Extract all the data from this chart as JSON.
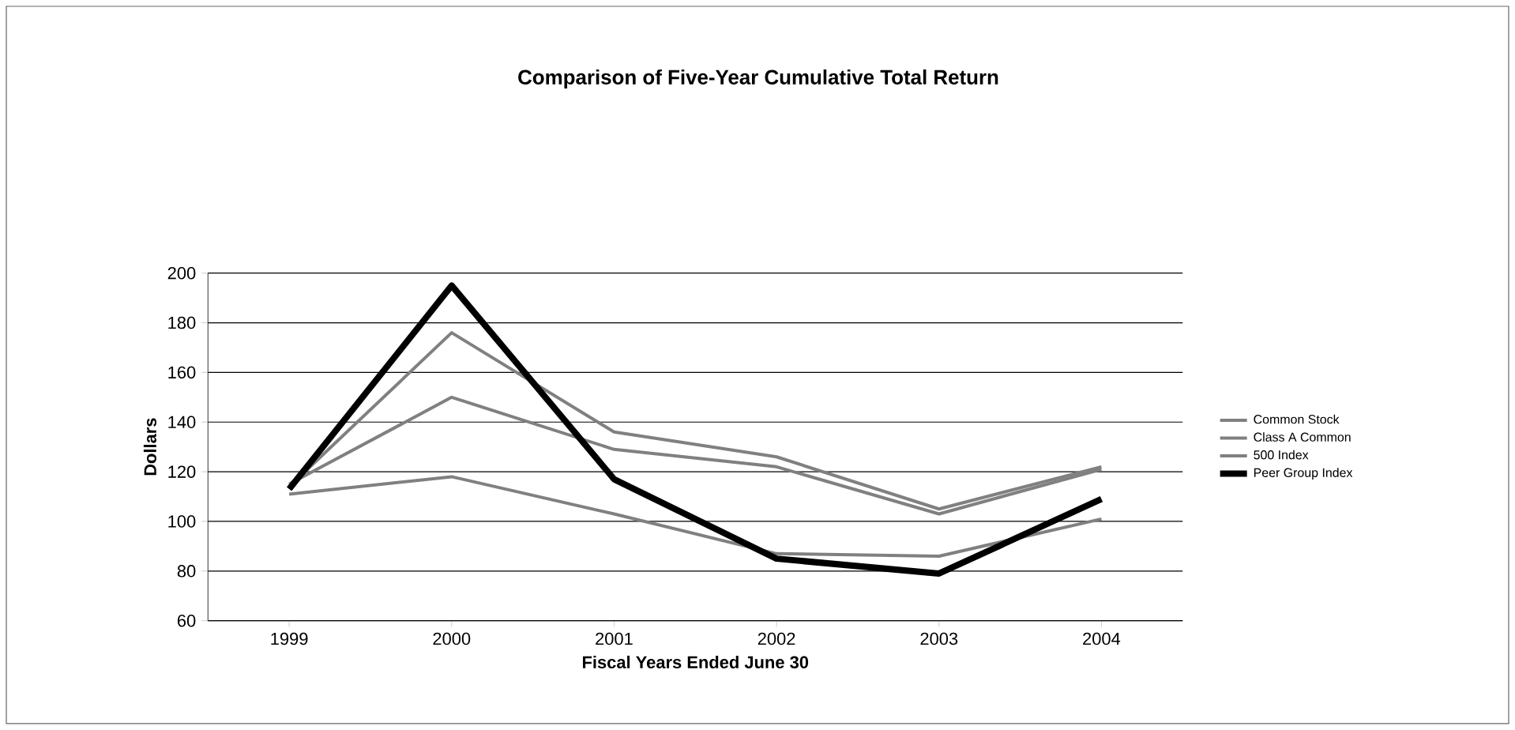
{
  "chart_data": {
    "type": "line",
    "title": "Comparison of Five-Year Cumulative Total Return",
    "xlabel": "Fiscal Years Ended June 30",
    "ylabel": "Dollars",
    "categories": [
      "1999",
      "2000",
      "2001",
      "2002",
      "2003",
      "2004"
    ],
    "series": [
      {
        "name": "Common Stock",
        "color": "#808080",
        "values": [
          114,
          176,
          136,
          126,
          105,
          122
        ]
      },
      {
        "name": "Class A Common",
        "color": "#808080",
        "values": [
          115,
          150,
          129,
          122,
          103,
          121
        ]
      },
      {
        "name": "500 Index",
        "color": "#808080",
        "values": [
          111,
          118,
          103,
          87,
          86,
          101
        ]
      },
      {
        "name": "Peer Group Index",
        "color": "#000000",
        "values": [
          113,
          195,
          117,
          85,
          79,
          109
        ]
      }
    ],
    "ylim": [
      60,
      200
    ],
    "yticks": [
      60,
      80,
      100,
      120,
      140,
      160,
      180,
      200
    ],
    "grid": "y",
    "legend": "right",
    "marker": "none",
    "line_style": "solid"
  }
}
